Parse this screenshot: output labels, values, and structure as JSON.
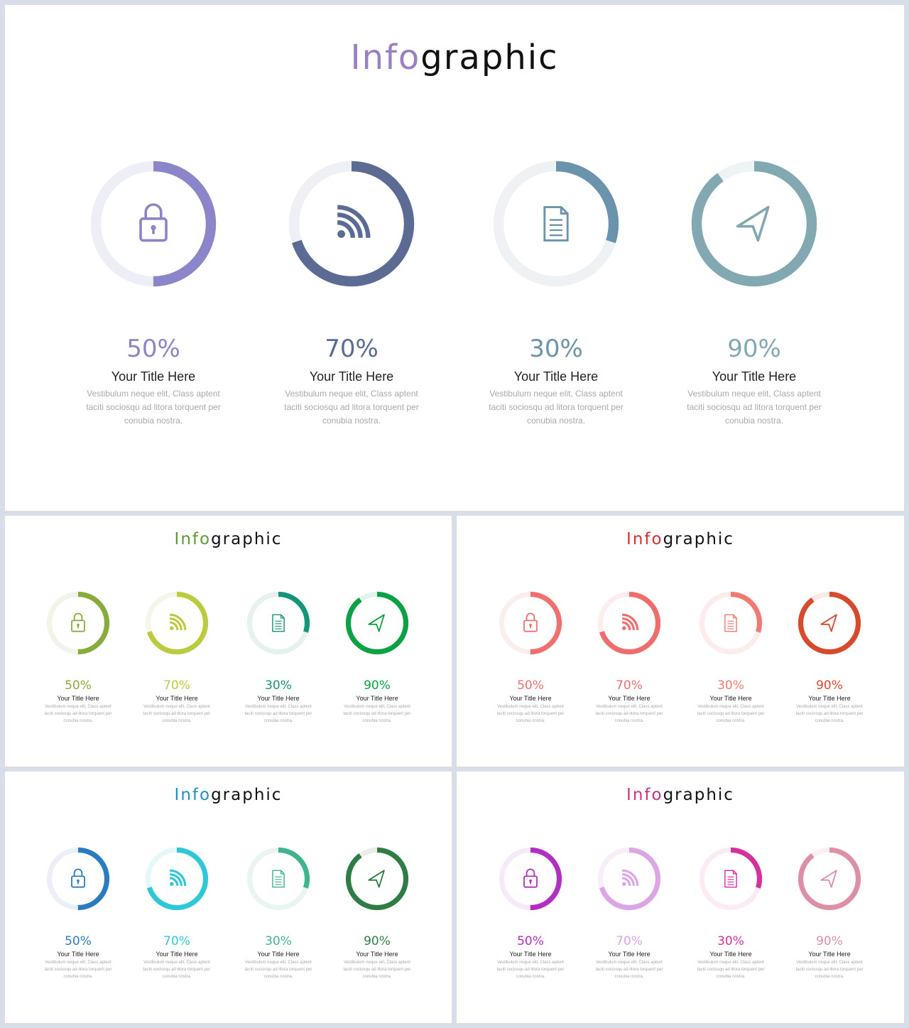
{
  "slides": [
    {
      "title_accent": "Info",
      "title_rest": "graphic",
      "accent_color": "#9b7fc4",
      "items": [
        {
          "icon": "lock-icon",
          "percent": 50,
          "label": "50%",
          "title": "Your Title Here",
          "desc": "Vestibulum neque  elit, Class aptent taciti sociosqu ad litora torquent per conubia nostra.",
          "color": "#8b86c9",
          "track": "#eeeff6"
        },
        {
          "icon": "rss-icon",
          "percent": 70,
          "label": "70%",
          "title": "Your Title Here",
          "desc": "Vestibulum neque  elit, Class aptent taciti sociosqu ad litora torquent per conubia nostra.",
          "color": "#5b6b94",
          "track": "#edf0f5"
        },
        {
          "icon": "document-icon",
          "percent": 30,
          "label": "30%",
          "title": "Your Title Here",
          "desc": "Vestibulum neque  elit, Class aptent taciti sociosqu ad litora torquent per conubia nostra.",
          "color": "#6b93ac",
          "track": "#eef2f5"
        },
        {
          "icon": "navigation-arrow-icon",
          "percent": 90,
          "label": "90%",
          "title": "Your Title Here",
          "desc": "Vestibulum neque  elit, Class aptent taciti sociosqu ad litora torquent per conubia nostra.",
          "color": "#82a8b2",
          "track": "#eef3f4"
        }
      ]
    },
    {
      "title_accent": "Info",
      "title_rest": "graphic",
      "accent_color": "#5e9a32",
      "items": [
        {
          "icon": "lock-icon",
          "percent": 50,
          "label": "50%",
          "title": "Your Title Here",
          "desc": "Vestibulum neque  elit, Class aptent taciti sociosqu ad litora torquent per conubia nostra.",
          "color": "#86ad3c",
          "track": "#f1f4e8"
        },
        {
          "icon": "rss-icon",
          "percent": 70,
          "label": "70%",
          "title": "Your Title Here",
          "desc": "Vestibulum neque  elit, Class aptent taciti sociosqu ad litora torquent per conubia nostra.",
          "color": "#bccb3e",
          "track": "#f5f6e8"
        },
        {
          "icon": "document-icon",
          "percent": 30,
          "label": "30%",
          "title": "Your Title Here",
          "desc": "Vestibulum neque  elit, Class aptent taciti sociosqu ad litora torquent per conubia nostra.",
          "color": "#16957a",
          "track": "#e5f2ee"
        },
        {
          "icon": "navigation-arrow-icon",
          "percent": 90,
          "label": "90%",
          "title": "Your Title Here",
          "desc": "Vestibulum neque  elit, Class aptent taciti sociosqu ad litora torquent per conubia nostra.",
          "color": "#0aa243",
          "track": "#e4f3e9"
        }
      ]
    },
    {
      "title_accent": "Info",
      "title_rest": "graphic",
      "accent_color": "#d83030",
      "items": [
        {
          "icon": "lock-icon",
          "percent": 50,
          "label": "50%",
          "title": "Your Title Here",
          "desc": "Vestibulum neque  elit, Class aptent taciti sociosqu ad litora torquent per conubia nostra.",
          "color": "#f07070",
          "track": "#fdeeee"
        },
        {
          "icon": "rss-icon",
          "percent": 70,
          "label": "70%",
          "title": "Your Title Here",
          "desc": "Vestibulum neque  elit, Class aptent taciti sociosqu ad litora torquent per conubia nostra.",
          "color": "#ee6d6d",
          "track": "#fdeeee"
        },
        {
          "icon": "document-icon",
          "percent": 30,
          "label": "30%",
          "title": "Your Title Here",
          "desc": "Vestibulum neque  elit, Class aptent taciti sociosqu ad litora torquent per conubia nostra.",
          "color": "#f27a74",
          "track": "#fdecec"
        },
        {
          "icon": "navigation-arrow-icon",
          "percent": 90,
          "label": "90%",
          "title": "Your Title Here",
          "desc": "Vestibulum neque  elit, Class aptent taciti sociosqu ad litora torquent per conubia nostra.",
          "color": "#d64a2e",
          "track": "#fbe9e5"
        }
      ]
    },
    {
      "title_accent": "Info",
      "title_rest": "graphic",
      "accent_color": "#1e90c8",
      "items": [
        {
          "icon": "lock-icon",
          "percent": 50,
          "label": "50%",
          "title": "Your Title Here",
          "desc": "Vestibulum neque  elit, Class aptent taciti sociosqu ad litora torquent per conubia nostra.",
          "color": "#2a7cc0",
          "track": "#e9f0f7"
        },
        {
          "icon": "rss-icon",
          "percent": 70,
          "label": "70%",
          "title": "Your Title Here",
          "desc": "Vestibulum neque  elit, Class aptent taciti sociosqu ad litora torquent per conubia nostra.",
          "color": "#2ec8d8",
          "track": "#e6f7f9"
        },
        {
          "icon": "document-icon",
          "percent": 30,
          "label": "30%",
          "title": "Your Title Here",
          "desc": "Vestibulum neque  elit, Class aptent taciti sociosqu ad litora torquent per conubia nostra.",
          "color": "#40b48e",
          "track": "#e9f5f0"
        },
        {
          "icon": "navigation-arrow-icon",
          "percent": 90,
          "label": "90%",
          "title": "Your Title Here",
          "desc": "Vestibulum neque  elit, Class aptent taciti sociosqu ad litora torquent per conubia nostra.",
          "color": "#2e7d45",
          "track": "#e6f0e9"
        }
      ]
    },
    {
      "title_accent": "Info",
      "title_rest": "graphic",
      "accent_color": "#d0307c",
      "items": [
        {
          "icon": "lock-icon",
          "percent": 50,
          "label": "50%",
          "title": "Your Title Here",
          "desc": "Vestibulum neque  elit, Class aptent taciti sociosqu ad litora torquent per conubia nostra.",
          "color": "#b32ec4",
          "track": "#f6e9f8"
        },
        {
          "icon": "rss-icon",
          "percent": 70,
          "label": "70%",
          "title": "Your Title Here",
          "desc": "Vestibulum neque  elit, Class aptent taciti sociosqu ad litora torquent per conubia nostra.",
          "color": "#dca6e6",
          "track": "#f8eefa"
        },
        {
          "icon": "document-icon",
          "percent": 30,
          "label": "30%",
          "title": "Your Title Here",
          "desc": "Vestibulum neque  elit, Class aptent taciti sociosqu ad litora torquent per conubia nostra.",
          "color": "#d6309a",
          "track": "#fbebf4"
        },
        {
          "icon": "navigation-arrow-icon",
          "percent": 90,
          "label": "90%",
          "title": "Your Title Here",
          "desc": "Vestibulum neque  elit, Class aptent taciti sociosqu ad litora torquent per conubia nostra.",
          "color": "#dd8fa6",
          "track": "#fbeff2"
        }
      ]
    }
  ]
}
